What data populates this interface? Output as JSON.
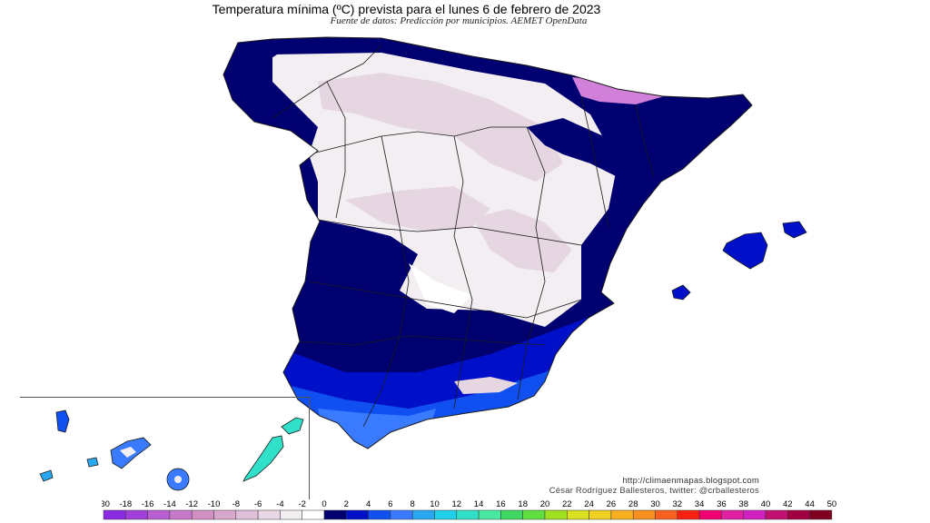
{
  "header": {
    "title": "Temperatura mínima (ºC) prevista para el lunes 6 de febrero de 2023",
    "subtitle": "Fuente de datos: Predicción por municipios. AEMET OpenData"
  },
  "credits": {
    "url": "http://climaenmapas.blogspot.com",
    "author": "César Rodríguez Ballesteros, twitter: @crballesteros"
  },
  "legend": {
    "ticks": [
      "-30",
      "-18",
      "-16",
      "-14",
      "-12",
      "-10",
      "-8",
      "-6",
      "-4",
      "-2",
      "0",
      "2",
      "4",
      "6",
      "8",
      "10",
      "12",
      "14",
      "16",
      "18",
      "20",
      "22",
      "24",
      "26",
      "28",
      "30",
      "32",
      "34",
      "36",
      "38",
      "40",
      "42",
      "44",
      "50"
    ],
    "colors": [
      "#8a2be2",
      "#a040d8",
      "#b860d0",
      "#c878c8",
      "#d090c4",
      "#d8a8cc",
      "#e0c0d8",
      "#e8d8e6",
      "#f2eef2",
      "#ffffff",
      "#000070",
      "#0010c8",
      "#1050f0",
      "#3a7aff",
      "#28a8f0",
      "#20d0e8",
      "#30e0c8",
      "#48e8a0",
      "#40d860",
      "#60e040",
      "#a0e020",
      "#d8e020",
      "#f0d020",
      "#f8b020",
      "#f89020",
      "#f86020",
      "#f82010",
      "#f00070",
      "#e020a0",
      "#d020c0",
      "#c01070",
      "#a00040",
      "#800020"
    ]
  },
  "map_colors": {
    "land_cold": "#f2eef2",
    "land_frost": "#e6d6e2",
    "pyrenees": "#d080d8",
    "zero": "#000070",
    "coast_mild": "#0010c8",
    "coast_warm": "#1050f0",
    "canary_warm": "#30e0c8",
    "border": "#1a1a1a"
  }
}
